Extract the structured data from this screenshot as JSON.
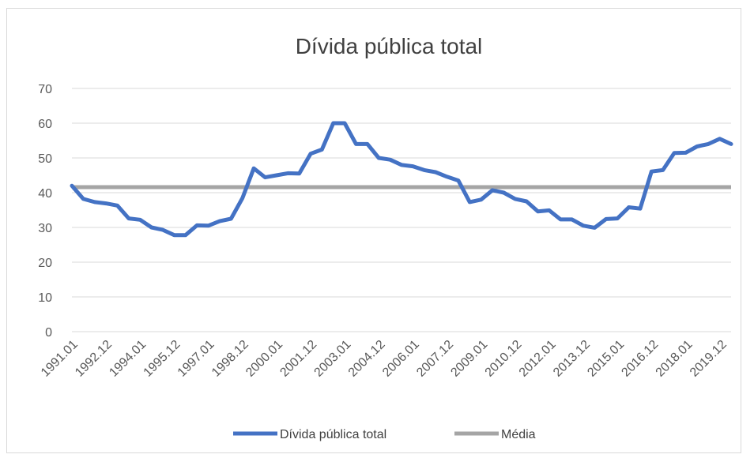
{
  "chart_data": {
    "type": "line",
    "title": "Dívida pública total",
    "xlabel": "",
    "ylabel": "",
    "ylim": [
      0,
      70
    ],
    "yticks": [
      0,
      10,
      20,
      30,
      40,
      50,
      60,
      70
    ],
    "grid": true,
    "legend_position": "bottom",
    "x_tick_labels": [
      "1991.01",
      "1992.12",
      "1994.01",
      "1995.12",
      "1997.01",
      "1998.12",
      "2000.01",
      "2001.12",
      "2003.01",
      "2004.12",
      "2006.01",
      "2007.12",
      "2009.01",
      "2010.12",
      "2012.01",
      "2013.12",
      "2015.01",
      "2016.12",
      "2018.01",
      "2019.12"
    ],
    "series": [
      {
        "name": "Dívida pública total",
        "color": "#4472c4",
        "values": [
          42,
          38.2,
          37.3,
          36.9,
          36.3,
          32.6,
          32.2,
          30,
          29.3,
          27.8,
          27.8,
          30.6,
          30.5,
          31.8,
          32.5,
          38.4,
          47,
          44.4,
          45,
          45.6,
          45.5,
          51.2,
          52.4,
          60,
          60,
          54,
          54,
          50,
          49.5,
          48,
          47.6,
          46.5,
          45.9,
          44.6,
          43.5,
          37.3,
          38,
          40.7,
          40,
          38.2,
          37.5,
          34.6,
          34.9,
          32.3,
          32.3,
          30.5,
          29.9,
          32.4,
          32.6,
          35.8,
          35.4,
          46.1,
          46.5,
          51.4,
          51.5,
          53.3,
          54,
          55.5,
          54
        ]
      },
      {
        "name": "Média",
        "color": "#a5a5a5",
        "values": [
          41.6,
          41.6
        ]
      }
    ]
  }
}
